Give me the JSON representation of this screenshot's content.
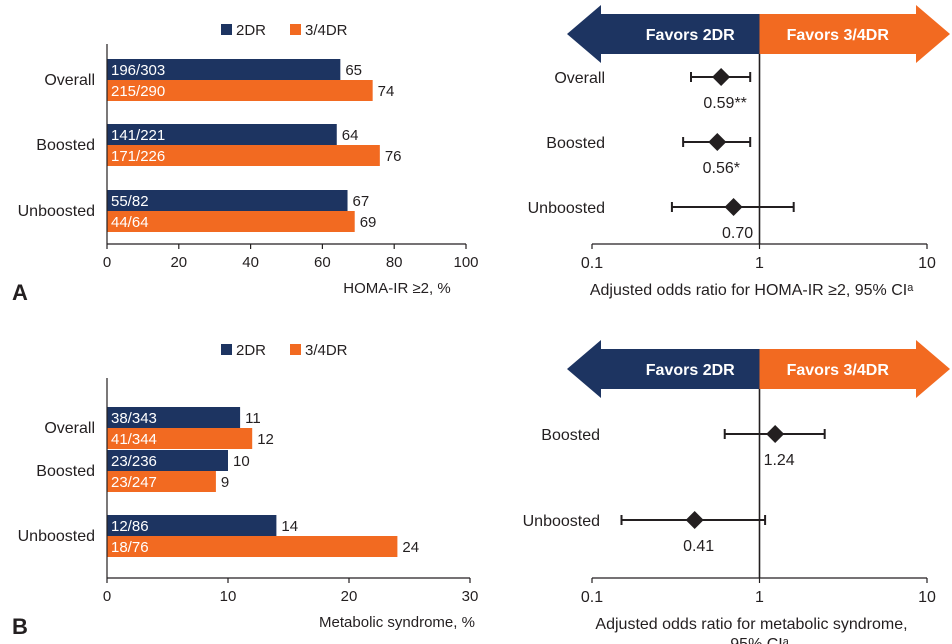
{
  "colors": {
    "dr2": "#1d3461",
    "dr34": "#f26a21",
    "ink": "#231f20"
  },
  "chart_data": [
    {
      "panel": "A",
      "type": "bar",
      "orientation": "horizontal",
      "xlabel": "HOMA-IR ≥2, %",
      "xlim": [
        0,
        100
      ],
      "xticks": [
        0,
        20,
        40,
        60,
        80,
        100
      ],
      "categories": [
        "Overall",
        "Boosted",
        "Unboosted"
      ],
      "legend_position": "top",
      "series": [
        {
          "name": "2DR",
          "values": [
            65,
            64,
            67
          ],
          "fractions": [
            "196/303",
            "141/221",
            "55/82"
          ]
        },
        {
          "name": "3/4DR",
          "values": [
            74,
            76,
            69
          ],
          "fractions": [
            "215/290",
            "171/226",
            "44/64"
          ]
        }
      ]
    },
    {
      "panel": "A",
      "type": "scatter",
      "subtype": "forest",
      "xlabel": "Adjusted odds ratio for HOMA-IR ≥2, 95% CIᵃ",
      "xscale": "log",
      "xlim": [
        0.1,
        10
      ],
      "xticks": [
        "0.1",
        "1",
        "10"
      ],
      "reference": 1,
      "arrows": {
        "left": "Favors 2DR",
        "right": "Favors 3/4DR"
      },
      "categories": [
        "Overall",
        "Boosted",
        "Unboosted"
      ],
      "points": [
        {
          "category": "Overall",
          "or": 0.59,
          "ci": [
            0.39,
            0.88
          ],
          "label": "0.59**"
        },
        {
          "category": "Boosted",
          "or": 0.56,
          "ci": [
            0.35,
            0.88
          ],
          "label": "0.56*"
        },
        {
          "category": "Unboosted",
          "or": 0.7,
          "ci": [
            0.3,
            1.6
          ],
          "label": "0.70"
        }
      ]
    },
    {
      "panel": "B",
      "type": "bar",
      "orientation": "horizontal",
      "xlabel": "Metabolic syndrome, %",
      "xlim": [
        0,
        30
      ],
      "xticks": [
        0,
        10,
        20,
        30
      ],
      "categories": [
        "Overall",
        "Boosted",
        "Unboosted"
      ],
      "legend_position": "top",
      "series": [
        {
          "name": "2DR",
          "values": [
            11,
            10,
            14
          ],
          "fractions": [
            "38/343",
            "23/236",
            "12/86"
          ]
        },
        {
          "name": "3/4DR",
          "values": [
            12,
            9,
            24
          ],
          "fractions": [
            "41/344",
            "23/247",
            "18/76"
          ]
        }
      ]
    },
    {
      "panel": "B",
      "type": "scatter",
      "subtype": "forest",
      "xlabel": "Adjusted odds ratio for metabolic syndrome,",
      "xlabel2": "95% CIᵃ",
      "xscale": "log",
      "xlim": [
        0.1,
        10
      ],
      "xticks": [
        "0.1",
        "1",
        "10"
      ],
      "reference": 1,
      "arrows": {
        "left": "Favors 2DR",
        "right": "Favors 3/4DR"
      },
      "categories": [
        "Boosted",
        "Unboosted"
      ],
      "points": [
        {
          "category": "Boosted",
          "or": 1.24,
          "ci": [
            0.62,
            2.45
          ],
          "label": "1.24"
        },
        {
          "category": "Unboosted",
          "or": 0.41,
          "ci": [
            0.15,
            1.08
          ],
          "label": "0.41"
        }
      ]
    }
  ]
}
